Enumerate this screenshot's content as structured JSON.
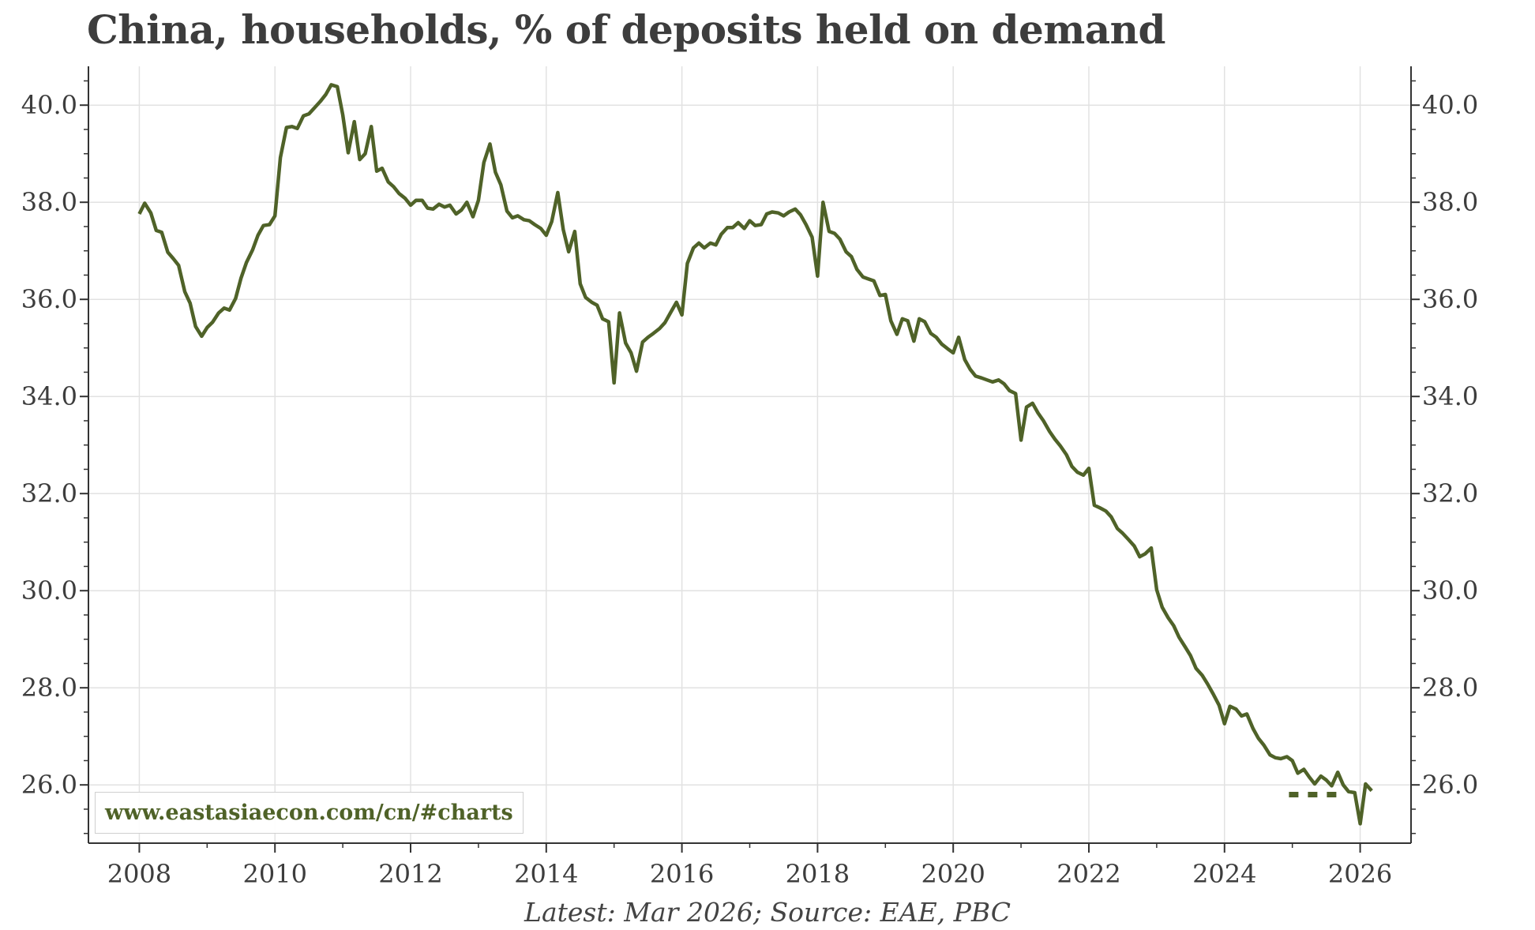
{
  "title": "China, households, % of deposits held on demand",
  "source_note": "Latest: Mar 2026; Source: EAE, PBC",
  "watermark": "www.eastasiaecon.com/cn/#charts",
  "colors": {
    "line": "#4f6228",
    "grid": "#e2e2e2",
    "axis": "#333333",
    "text": "#3d3d3d"
  },
  "chart_data": {
    "type": "line",
    "title": "China, households, % of deposits held on demand",
    "xlabel": "",
    "ylabel": "",
    "xlim": [
      2007.25,
      2026.75
    ],
    "ylim": [
      24.8,
      40.8
    ],
    "x_ticks": [
      2008,
      2010,
      2012,
      2014,
      2016,
      2018,
      2020,
      2022,
      2024,
      2026
    ],
    "x_tick_labels": [
      "2008",
      "2010",
      "2012",
      "2014",
      "2016",
      "2018",
      "2020",
      "2022",
      "2024",
      "2026"
    ],
    "y_ticks": [
      26,
      28,
      30,
      32,
      34,
      36,
      38,
      40
    ],
    "y_tick_labels": [
      "26.0",
      "28.0",
      "30.0",
      "32.0",
      "34.0",
      "36.0",
      "38.0",
      "40.0"
    ],
    "grid": true,
    "secondary_y_axis": true,
    "series": [
      {
        "style": "solid",
        "points": [
          [
            2008.0,
            37.76
          ],
          [
            2008.08,
            37.98
          ],
          [
            2008.17,
            37.78
          ],
          [
            2008.25,
            37.42
          ],
          [
            2008.33,
            37.38
          ],
          [
            2008.42,
            36.97
          ],
          [
            2008.5,
            36.84
          ],
          [
            2008.58,
            36.7
          ],
          [
            2008.67,
            36.16
          ],
          [
            2008.75,
            35.92
          ],
          [
            2008.83,
            35.44
          ],
          [
            2008.92,
            35.24
          ],
          [
            2009.0,
            35.42
          ],
          [
            2009.08,
            35.53
          ],
          [
            2009.17,
            35.72
          ],
          [
            2009.25,
            35.82
          ],
          [
            2009.33,
            35.78
          ],
          [
            2009.42,
            36.02
          ],
          [
            2009.5,
            36.44
          ],
          [
            2009.58,
            36.76
          ],
          [
            2009.67,
            37.02
          ],
          [
            2009.75,
            37.32
          ],
          [
            2009.83,
            37.52
          ],
          [
            2009.92,
            37.54
          ],
          [
            2010.0,
            37.72
          ],
          [
            2010.08,
            38.92
          ],
          [
            2010.17,
            39.54
          ],
          [
            2010.25,
            39.56
          ],
          [
            2010.33,
            39.52
          ],
          [
            2010.42,
            39.78
          ],
          [
            2010.5,
            39.82
          ],
          [
            2010.58,
            39.94
          ],
          [
            2010.67,
            40.08
          ],
          [
            2010.75,
            40.22
          ],
          [
            2010.83,
            40.42
          ],
          [
            2010.92,
            40.38
          ],
          [
            2011.0,
            39.8
          ],
          [
            2011.08,
            39.02
          ],
          [
            2011.17,
            39.66
          ],
          [
            2011.25,
            38.88
          ],
          [
            2011.33,
            39.0
          ],
          [
            2011.42,
            39.56
          ],
          [
            2011.5,
            38.64
          ],
          [
            2011.58,
            38.7
          ],
          [
            2011.67,
            38.42
          ],
          [
            2011.75,
            38.32
          ],
          [
            2011.83,
            38.18
          ],
          [
            2011.92,
            38.08
          ],
          [
            2012.0,
            37.94
          ],
          [
            2012.08,
            38.04
          ],
          [
            2012.17,
            38.04
          ],
          [
            2012.25,
            37.88
          ],
          [
            2012.33,
            37.86
          ],
          [
            2012.42,
            37.96
          ],
          [
            2012.5,
            37.9
          ],
          [
            2012.58,
            37.94
          ],
          [
            2012.67,
            37.76
          ],
          [
            2012.75,
            37.84
          ],
          [
            2012.83,
            38.0
          ],
          [
            2012.92,
            37.7
          ],
          [
            2013.0,
            38.04
          ],
          [
            2013.08,
            38.82
          ],
          [
            2013.17,
            39.2
          ],
          [
            2013.25,
            38.62
          ],
          [
            2013.33,
            38.36
          ],
          [
            2013.42,
            37.82
          ],
          [
            2013.5,
            37.68
          ],
          [
            2013.58,
            37.72
          ],
          [
            2013.67,
            37.64
          ],
          [
            2013.75,
            37.62
          ],
          [
            2013.83,
            37.54
          ],
          [
            2013.92,
            37.46
          ],
          [
            2014.0,
            37.32
          ],
          [
            2014.08,
            37.6
          ],
          [
            2014.17,
            38.2
          ],
          [
            2014.25,
            37.44
          ],
          [
            2014.33,
            36.98
          ],
          [
            2014.42,
            37.4
          ],
          [
            2014.5,
            36.32
          ],
          [
            2014.58,
            36.04
          ],
          [
            2014.67,
            35.94
          ],
          [
            2014.75,
            35.88
          ],
          [
            2014.83,
            35.6
          ],
          [
            2014.92,
            35.54
          ],
          [
            2015.0,
            34.28
          ],
          [
            2015.08,
            35.72
          ],
          [
            2015.17,
            35.1
          ],
          [
            2015.25,
            34.9
          ],
          [
            2015.33,
            34.52
          ],
          [
            2015.42,
            35.12
          ],
          [
            2015.5,
            35.22
          ],
          [
            2015.58,
            35.3
          ],
          [
            2015.67,
            35.4
          ],
          [
            2015.75,
            35.52
          ],
          [
            2015.83,
            35.72
          ],
          [
            2015.92,
            35.94
          ],
          [
            2016.0,
            35.68
          ],
          [
            2016.08,
            36.74
          ],
          [
            2016.17,
            37.06
          ],
          [
            2016.25,
            37.16
          ],
          [
            2016.33,
            37.06
          ],
          [
            2016.42,
            37.16
          ],
          [
            2016.5,
            37.12
          ],
          [
            2016.58,
            37.34
          ],
          [
            2016.67,
            37.48
          ],
          [
            2016.75,
            37.48
          ],
          [
            2016.83,
            37.58
          ],
          [
            2016.92,
            37.46
          ],
          [
            2017.0,
            37.62
          ],
          [
            2017.08,
            37.52
          ],
          [
            2017.17,
            37.54
          ],
          [
            2017.25,
            37.76
          ],
          [
            2017.33,
            37.8
          ],
          [
            2017.42,
            37.78
          ],
          [
            2017.5,
            37.72
          ],
          [
            2017.58,
            37.8
          ],
          [
            2017.67,
            37.86
          ],
          [
            2017.75,
            37.74
          ],
          [
            2017.83,
            37.54
          ],
          [
            2017.92,
            37.28
          ],
          [
            2018.0,
            36.48
          ],
          [
            2018.08,
            38.0
          ],
          [
            2018.17,
            37.4
          ],
          [
            2018.25,
            37.36
          ],
          [
            2018.33,
            37.24
          ],
          [
            2018.42,
            36.98
          ],
          [
            2018.5,
            36.88
          ],
          [
            2018.58,
            36.62
          ],
          [
            2018.67,
            36.46
          ],
          [
            2018.75,
            36.42
          ],
          [
            2018.83,
            36.38
          ],
          [
            2018.92,
            36.08
          ],
          [
            2019.0,
            36.1
          ],
          [
            2019.08,
            35.56
          ],
          [
            2019.17,
            35.28
          ],
          [
            2019.25,
            35.6
          ],
          [
            2019.33,
            35.56
          ],
          [
            2019.42,
            35.14
          ],
          [
            2019.5,
            35.6
          ],
          [
            2019.58,
            35.54
          ],
          [
            2019.67,
            35.3
          ],
          [
            2019.75,
            35.22
          ],
          [
            2019.83,
            35.08
          ],
          [
            2019.92,
            34.98
          ],
          [
            2020.0,
            34.9
          ],
          [
            2020.08,
            35.22
          ],
          [
            2020.17,
            34.76
          ],
          [
            2020.25,
            34.56
          ],
          [
            2020.33,
            34.42
          ],
          [
            2020.42,
            34.38
          ],
          [
            2020.5,
            34.34
          ],
          [
            2020.58,
            34.3
          ],
          [
            2020.67,
            34.34
          ],
          [
            2020.75,
            34.26
          ],
          [
            2020.83,
            34.12
          ],
          [
            2020.92,
            34.06
          ],
          [
            2021.0,
            33.1
          ],
          [
            2021.08,
            33.78
          ],
          [
            2021.17,
            33.86
          ],
          [
            2021.25,
            33.66
          ],
          [
            2021.33,
            33.5
          ],
          [
            2021.42,
            33.28
          ],
          [
            2021.5,
            33.12
          ],
          [
            2021.58,
            32.98
          ],
          [
            2021.67,
            32.8
          ],
          [
            2021.75,
            32.56
          ],
          [
            2021.83,
            32.44
          ],
          [
            2021.92,
            32.38
          ],
          [
            2022.0,
            32.52
          ],
          [
            2022.08,
            31.76
          ],
          [
            2022.17,
            31.7
          ],
          [
            2022.25,
            31.64
          ],
          [
            2022.33,
            31.52
          ],
          [
            2022.42,
            31.28
          ],
          [
            2022.5,
            31.18
          ],
          [
            2022.58,
            31.06
          ],
          [
            2022.67,
            30.92
          ],
          [
            2022.75,
            30.7
          ],
          [
            2022.83,
            30.76
          ],
          [
            2022.92,
            30.88
          ],
          [
            2023.0,
            30.02
          ],
          [
            2023.08,
            29.66
          ],
          [
            2023.17,
            29.44
          ],
          [
            2023.25,
            29.28
          ],
          [
            2023.33,
            29.04
          ],
          [
            2023.42,
            28.84
          ],
          [
            2023.5,
            28.66
          ],
          [
            2023.58,
            28.4
          ],
          [
            2023.67,
            28.26
          ],
          [
            2023.75,
            28.08
          ],
          [
            2023.83,
            27.88
          ],
          [
            2023.92,
            27.64
          ],
          [
            2024.0,
            27.26
          ],
          [
            2024.08,
            27.62
          ],
          [
            2024.17,
            27.56
          ],
          [
            2024.25,
            27.42
          ],
          [
            2024.33,
            27.46
          ],
          [
            2024.42,
            27.16
          ],
          [
            2024.5,
            26.96
          ],
          [
            2024.58,
            26.82
          ],
          [
            2024.67,
            26.62
          ],
          [
            2024.75,
            26.56
          ],
          [
            2024.83,
            26.54
          ],
          [
            2024.92,
            26.58
          ],
          [
            2025.0,
            26.5
          ],
          [
            2025.08,
            26.24
          ],
          [
            2025.17,
            26.32
          ],
          [
            2025.25,
            26.16
          ],
          [
            2025.33,
            26.02
          ],
          [
            2025.42,
            26.18
          ],
          [
            2025.5,
            26.1
          ],
          [
            2025.58,
            25.98
          ],
          [
            2025.67,
            26.26
          ],
          [
            2025.75,
            26.0
          ],
          [
            2025.83,
            25.86
          ],
          [
            2025.92,
            25.84
          ],
          [
            2026.0,
            25.2
          ],
          [
            2026.08,
            26.02
          ],
          [
            2026.17,
            25.88
          ]
        ]
      },
      {
        "style": "dotted",
        "points": [
          [
            2024.95,
            25.8
          ],
          [
            2025.72,
            25.8
          ]
        ]
      }
    ]
  }
}
